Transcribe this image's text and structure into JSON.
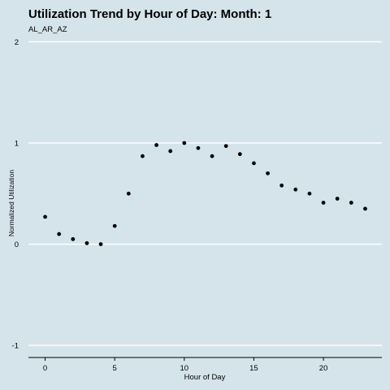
{
  "chart_data": {
    "type": "scatter",
    "title": "Utilization Trend by Hour of Day: Month: 1",
    "subtitle": "AL_AR_AZ",
    "xlabel": "Hour of Day",
    "ylabel": "Normalized Utilization",
    "xlim": [
      -1.2,
      24.2
    ],
    "ylim": [
      -1.12,
      2.06
    ],
    "xticks": [
      0,
      5,
      10,
      15,
      20
    ],
    "yticks": [
      -1,
      0,
      1,
      2
    ],
    "grid": "horizontal",
    "x": [
      0,
      1,
      2,
      3,
      4,
      5,
      6,
      7,
      8,
      9,
      10,
      11,
      12,
      13,
      14,
      15,
      16,
      17,
      18,
      19,
      20,
      21,
      22,
      23
    ],
    "y": [
      0.27,
      0.1,
      0.05,
      0.01,
      0.0,
      0.18,
      0.5,
      0.87,
      0.98,
      0.92,
      1.0,
      0.95,
      0.87,
      0.97,
      0.89,
      0.8,
      0.7,
      0.58,
      0.54,
      0.5,
      0.41,
      0.45,
      0.41,
      0.35
    ],
    "colors": {
      "background": "#d5e4eb",
      "grid": "#ffffff",
      "point": "#000000",
      "axis": "#000000"
    }
  }
}
